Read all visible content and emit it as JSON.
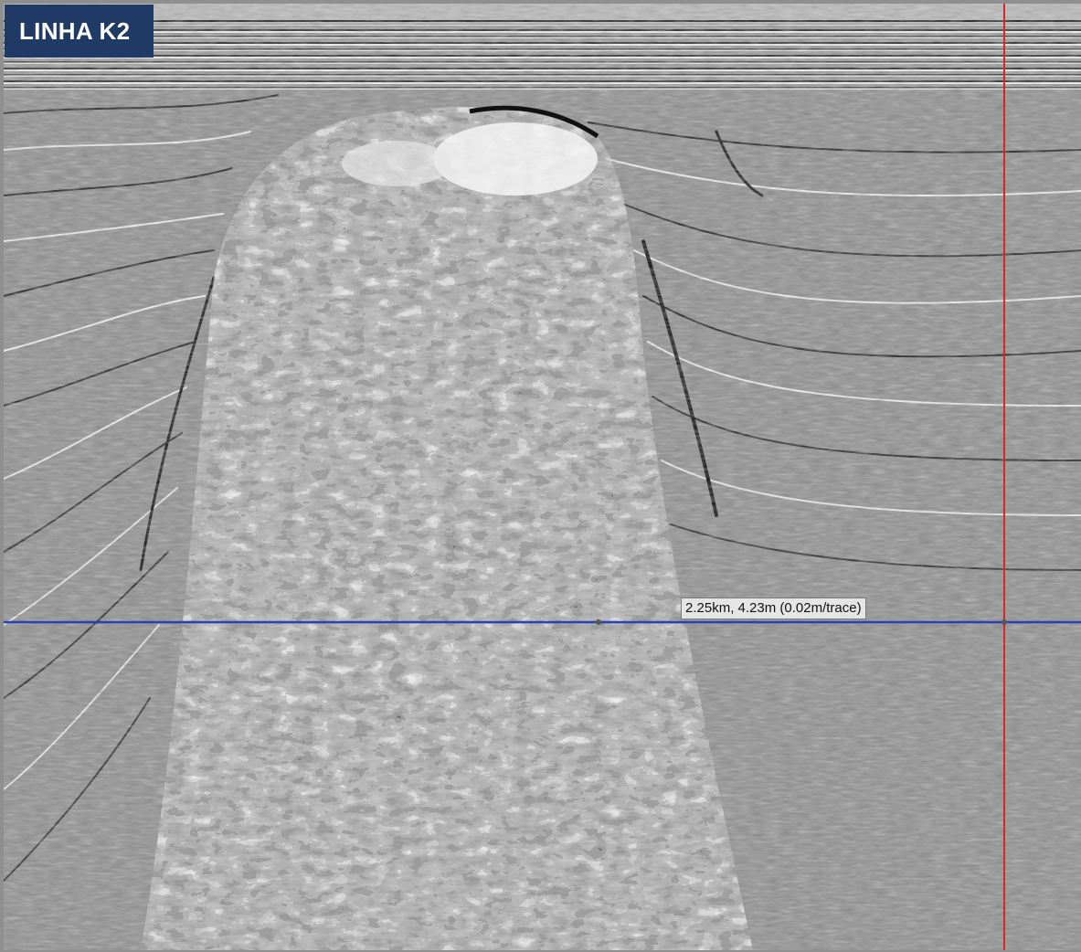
{
  "header": {
    "line_label": "LINHA K2"
  },
  "measurement": {
    "readout": "2.25km, 4.23m (0.02m/trace)"
  },
  "colors": {
    "label_background": "#1f3a64",
    "label_text": "#ffffff",
    "horizontal_cursor": "#2b3fb5",
    "vertical_cursor": "#d62828",
    "seismic_gray": "#8f8f8f"
  }
}
